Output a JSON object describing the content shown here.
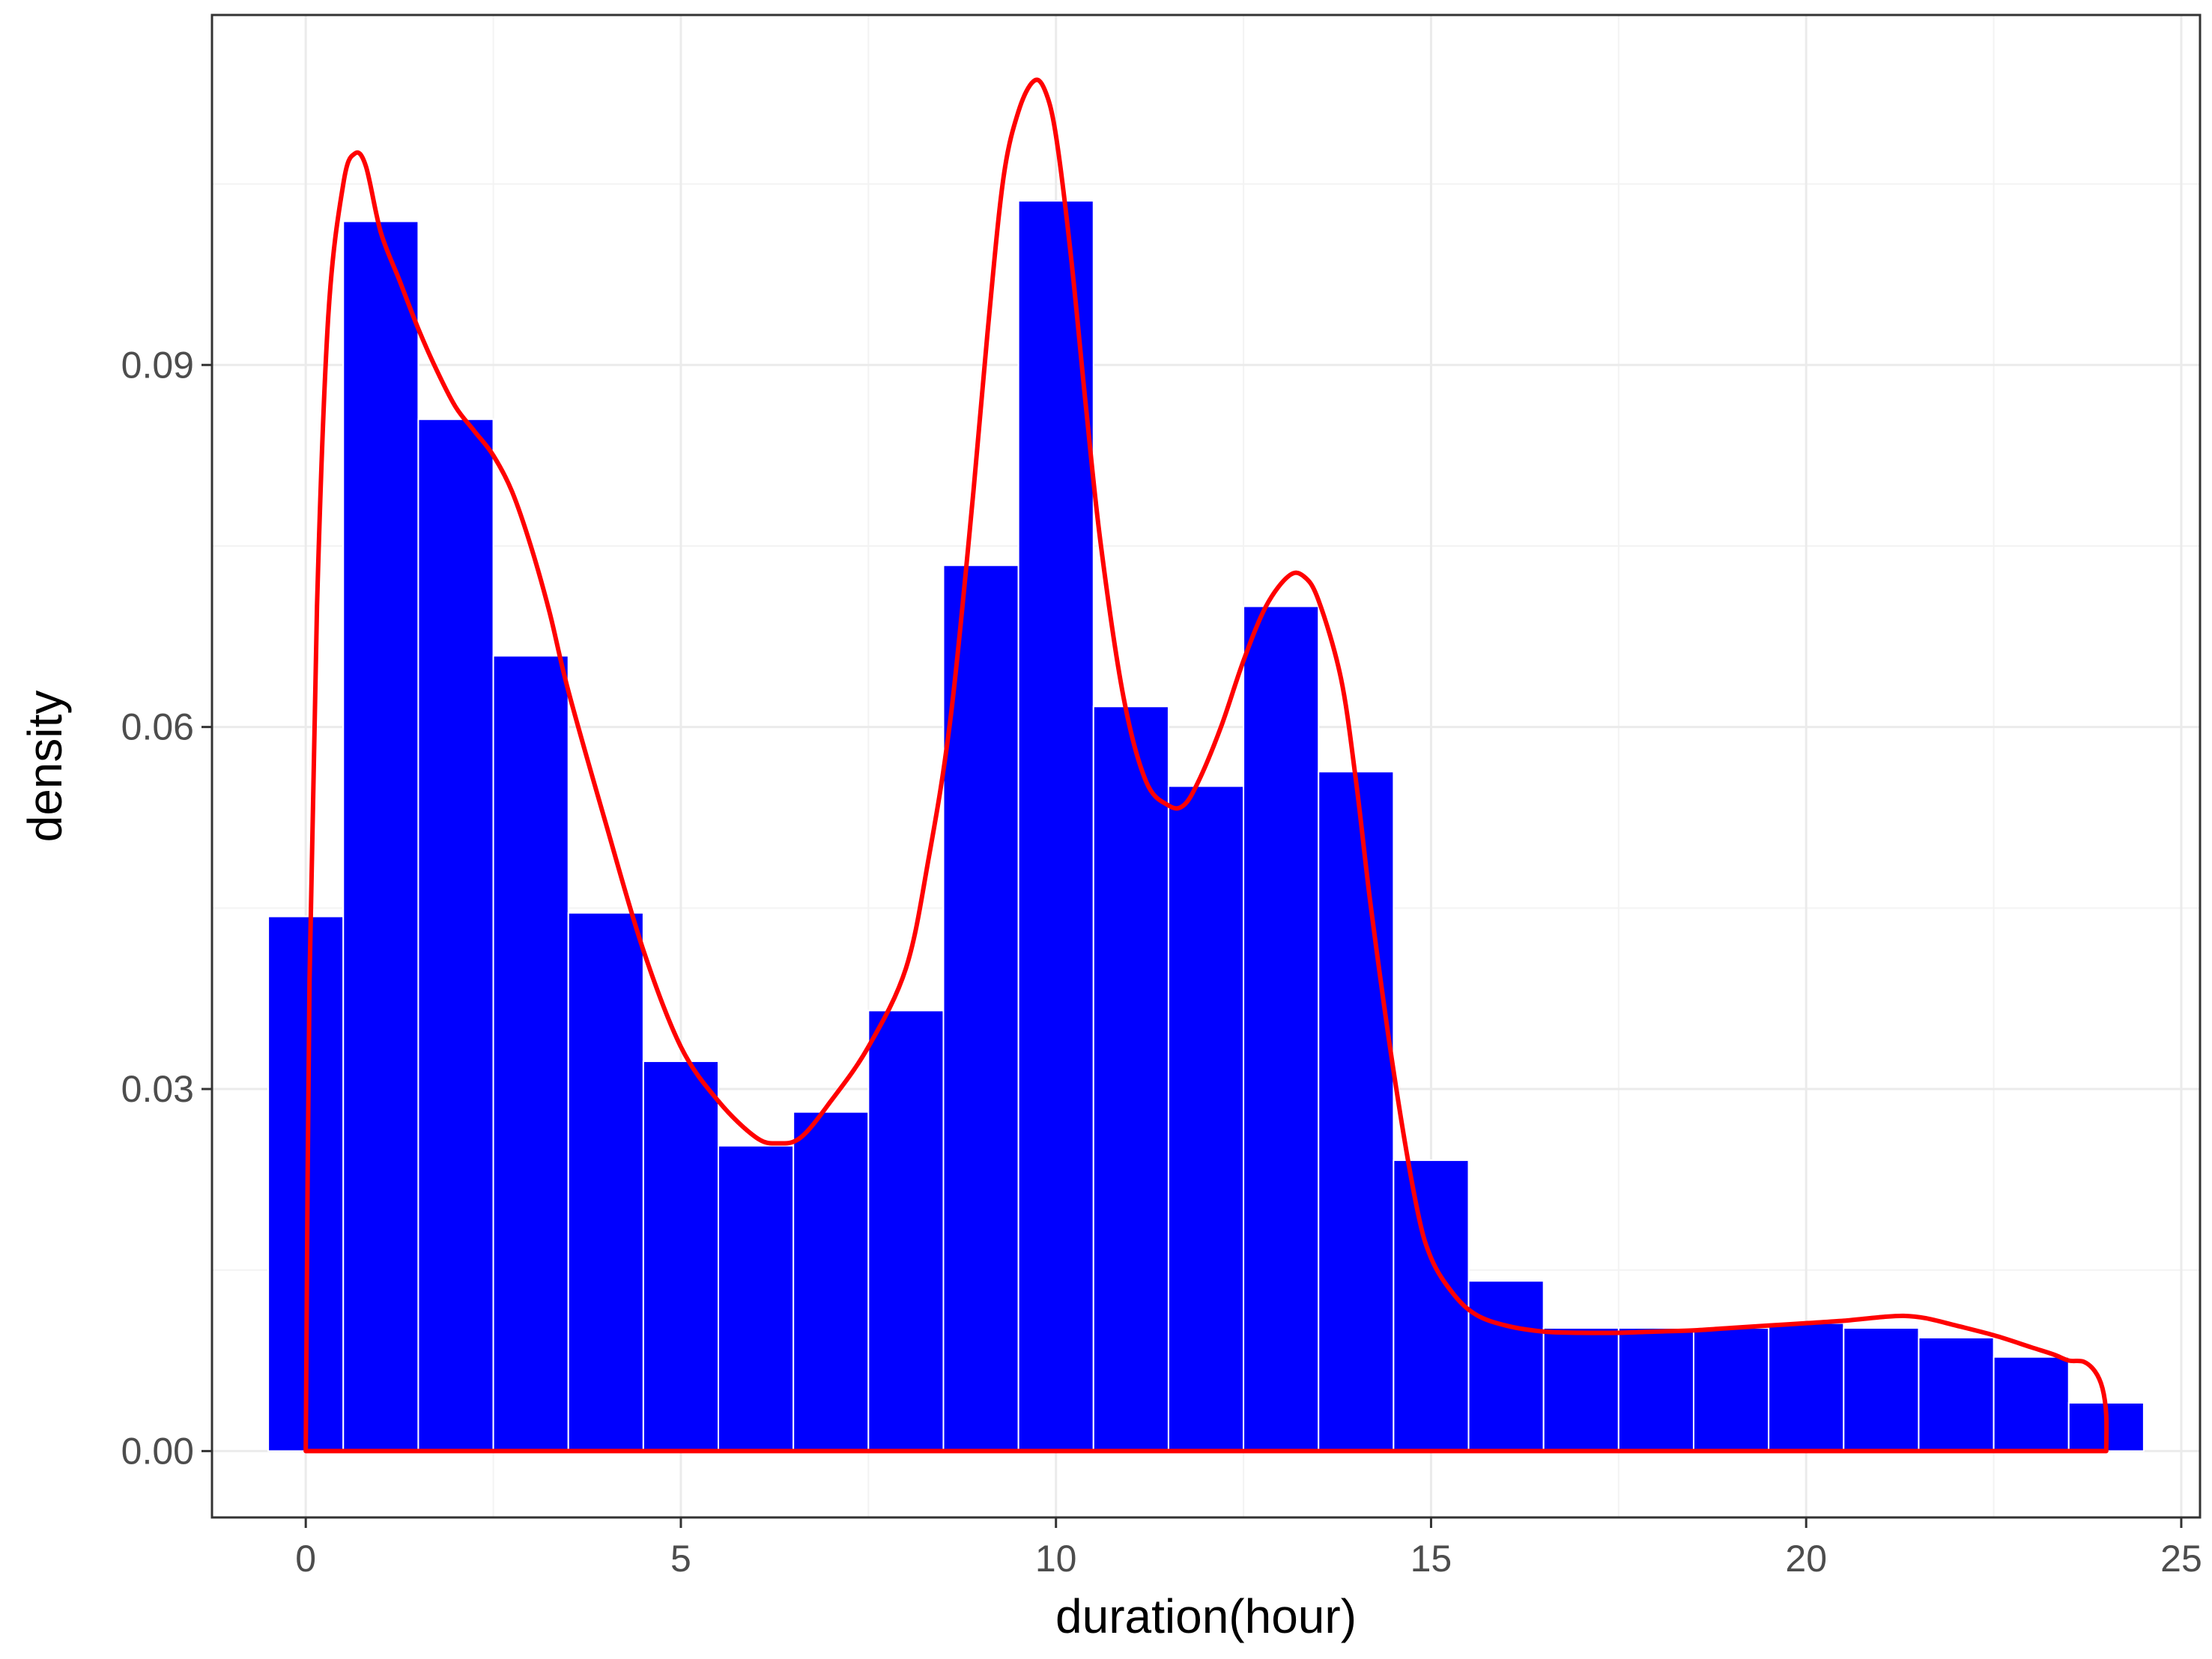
{
  "chart_data": {
    "type": "bar",
    "subtype": "histogram-with-density-curve",
    "xlabel": "duration(hour)",
    "ylabel": "density",
    "xlim": [
      -1.25,
      25.25
    ],
    "ylim": [
      -0.0055,
      0.119
    ],
    "x_ticks": [
      0,
      5,
      10,
      15,
      20,
      25
    ],
    "x_tick_labels": [
      "0",
      "5",
      "10",
      "15",
      "20",
      "25"
    ],
    "y_ticks": [
      0.0,
      0.03,
      0.06,
      0.09
    ],
    "y_tick_labels": [
      "0.00",
      "0.03",
      "0.06",
      "0.09"
    ],
    "grid": true,
    "legend": "none",
    "bin_width": 1,
    "bin_centers": [
      0,
      1,
      2,
      3,
      4,
      5,
      6,
      7,
      8,
      9,
      10,
      11,
      12,
      13,
      14,
      15,
      16,
      17,
      18,
      19,
      20,
      21,
      22,
      23,
      24
    ],
    "values": [
      0.0443,
      0.1019,
      0.0855,
      0.0659,
      0.0446,
      0.0323,
      0.0253,
      0.0281,
      0.0365,
      0.0734,
      0.1036,
      0.0617,
      0.0551,
      0.07,
      0.0563,
      0.0241,
      0.0141,
      0.0102,
      0.0102,
      0.0102,
      0.0106,
      0.0102,
      0.0094,
      0.0078,
      0.004
    ],
    "series": [
      {
        "type": "density-line",
        "x": [
          0,
          0.05,
          0.15,
          0.3,
          0.5,
          0.65,
          0.8,
          1.0,
          1.25,
          1.5,
          1.75,
          2.0,
          2.25,
          2.5,
          2.75,
          3.0,
          3.25,
          3.5,
          4.0,
          4.5,
          5.0,
          5.5,
          6.0,
          6.3,
          6.6,
          7.0,
          7.5,
          8.0,
          8.3,
          8.6,
          8.9,
          9.1,
          9.3,
          9.5,
          9.7,
          9.85,
          10.0,
          10.2,
          10.4,
          10.6,
          10.9,
          11.2,
          11.5,
          11.7,
          11.9,
          12.2,
          12.5,
          12.8,
          13.1,
          13.3,
          13.5,
          13.8,
          14.0,
          14.2,
          14.5,
          14.8,
          15.0,
          15.3,
          15.6,
          16.0,
          16.5,
          17.0,
          17.5,
          18.0,
          18.5,
          19.0,
          19.5,
          20.0,
          20.5,
          21.0,
          21.3,
          21.6,
          22.0,
          22.5,
          23.0,
          23.3,
          23.5,
          23.7,
          23.85,
          23.95,
          24.0,
          24.0
        ],
        "y": [
          0.0,
          0.039,
          0.07,
          0.094,
          0.105,
          0.1075,
          0.1065,
          0.101,
          0.097,
          0.093,
          0.0895,
          0.0865,
          0.0845,
          0.0825,
          0.0795,
          0.075,
          0.0695,
          0.063,
          0.052,
          0.0415,
          0.0335,
          0.029,
          0.026,
          0.0255,
          0.026,
          0.029,
          0.0335,
          0.04,
          0.049,
          0.061,
          0.0795,
          0.0935,
          0.1055,
          0.111,
          0.1135,
          0.1128,
          0.109,
          0.099,
          0.0865,
          0.075,
          0.0625,
          0.0555,
          0.0535,
          0.0535,
          0.0555,
          0.06,
          0.0655,
          0.07,
          0.0725,
          0.0725,
          0.0705,
          0.064,
          0.0555,
          0.045,
          0.0315,
          0.0205,
          0.016,
          0.013,
          0.0113,
          0.0104,
          0.0099,
          0.0098,
          0.0098,
          0.0099,
          0.01,
          0.0102,
          0.0104,
          0.0106,
          0.0108,
          0.0111,
          0.0112,
          0.011,
          0.0104,
          0.0096,
          0.0086,
          0.008,
          0.0075,
          0.0074,
          0.0066,
          0.0052,
          0.003,
          0.0
        ]
      }
    ],
    "colors": {
      "bar_fill": "#0000ff",
      "bar_border": "#ffffff",
      "density_line": "#ff0000",
      "grid_major": "#ebebeb",
      "grid_minor": "#f3f3f3",
      "panel_border": "#333333",
      "tick_text": "#4d4d4d",
      "axis_title_text": "#000000",
      "background": "#ffffff"
    }
  }
}
